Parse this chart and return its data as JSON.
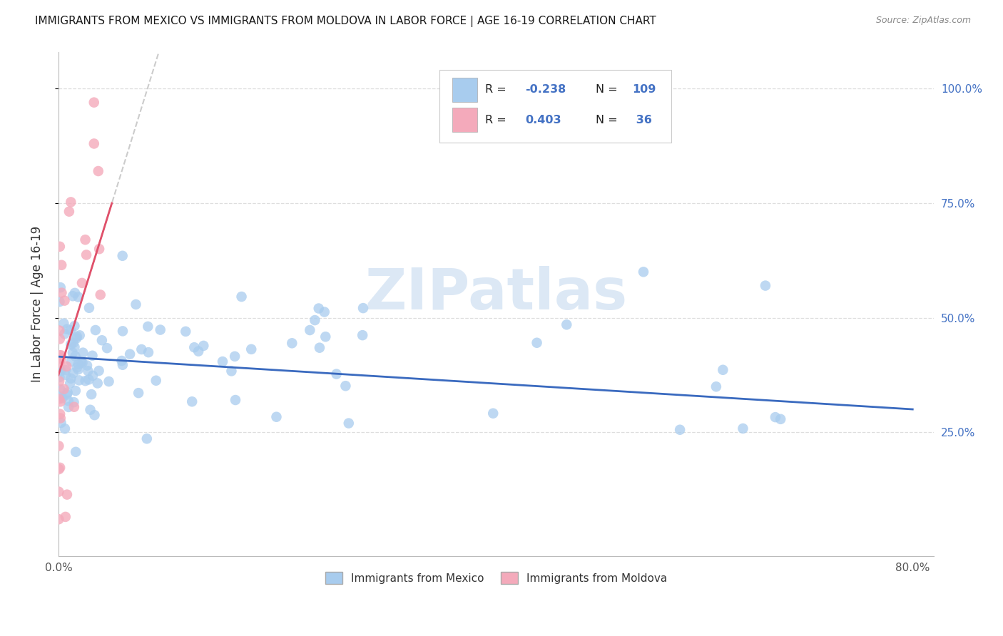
{
  "title": "IMMIGRANTS FROM MEXICO VS IMMIGRANTS FROM MOLDOVA IN LABOR FORCE | AGE 16-19 CORRELATION CHART",
  "source": "Source: ZipAtlas.com",
  "ylabel": "In Labor Force | Age 16-19",
  "xlim": [
    0.0,
    0.82
  ],
  "ylim": [
    -0.02,
    1.08
  ],
  "mexico_R": -0.238,
  "mexico_N": 109,
  "moldova_R": 0.403,
  "moldova_N": 36,
  "mexico_color": "#a8ccee",
  "moldova_color": "#f4aabb",
  "mexico_line_color": "#3a6abf",
  "moldova_line_color": "#e0506a",
  "moldova_dash_color": "#cccccc",
  "background_color": "#ffffff",
  "legend_blue": "#4472c4",
  "watermark": "ZIPatlas",
  "grid_color": "#dddddd"
}
